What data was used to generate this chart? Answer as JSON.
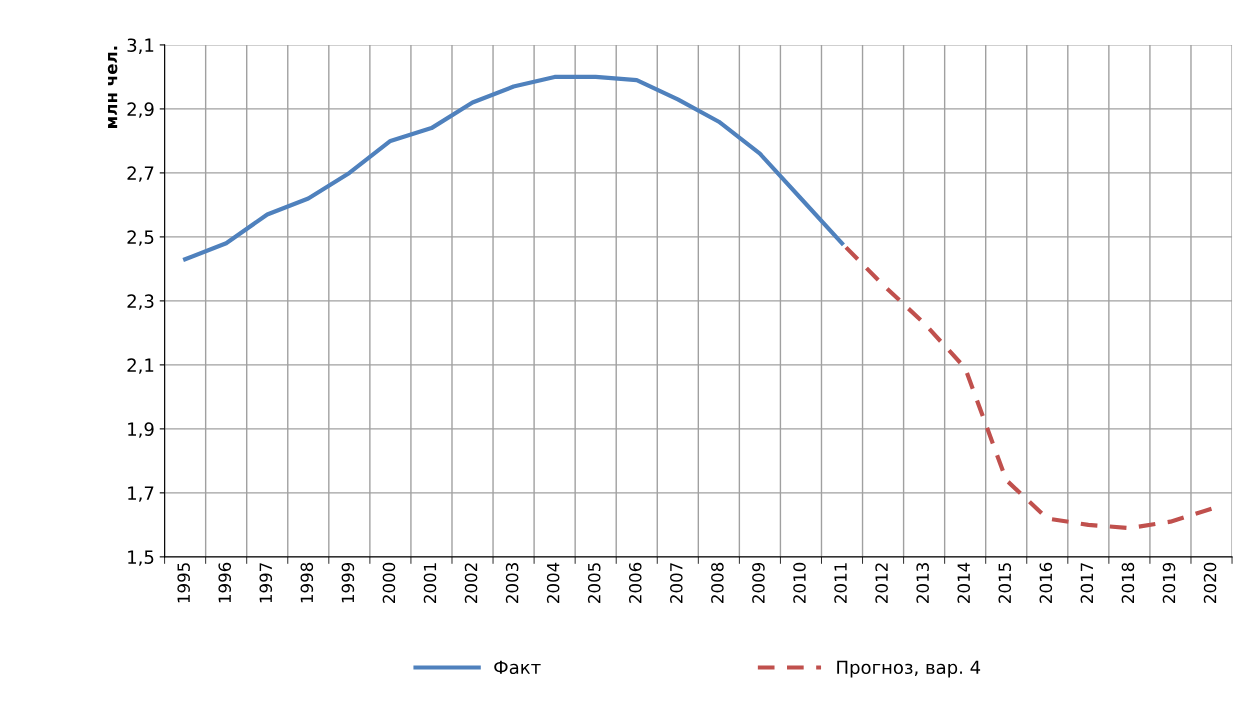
{
  "chart_data": {
    "type": "line",
    "ylabel": "млн чел.",
    "categories": [
      "1995",
      "1996",
      "1997",
      "1998",
      "1999",
      "2000",
      "2001",
      "2002",
      "2003",
      "2004",
      "2005",
      "2006",
      "2007",
      "2008",
      "2009",
      "2010",
      "2011",
      "2012",
      "2013",
      "2014",
      "2015",
      "2016",
      "2017",
      "2018",
      "2019",
      "2020"
    ],
    "series": [
      {
        "name": "Факт",
        "color": "#4f81bd",
        "line_style": "solid",
        "values": [
          2.43,
          2.48,
          2.57,
          2.62,
          2.7,
          2.8,
          2.84,
          2.92,
          2.97,
          3.0,
          3.0,
          2.99,
          2.93,
          2.86,
          2.76,
          2.62,
          2.48,
          null,
          null,
          null,
          null,
          null,
          null,
          null,
          null,
          null
        ]
      },
      {
        "name": "Прогноз, вар. 4",
        "color": "#c0504d",
        "line_style": "dashed",
        "values": [
          null,
          null,
          null,
          null,
          null,
          null,
          null,
          null,
          null,
          null,
          null,
          null,
          null,
          null,
          null,
          null,
          2.48,
          2.35,
          2.23,
          2.09,
          1.74,
          1.62,
          1.6,
          1.59,
          1.61,
          1.65
        ]
      }
    ],
    "ylim": [
      1.5,
      3.1
    ],
    "yticks": [
      {
        "value": 1.5,
        "label": "1,5"
      },
      {
        "value": 1.7,
        "label": "1,7"
      },
      {
        "value": 1.9,
        "label": "1,9"
      },
      {
        "value": 2.1,
        "label": "2,1"
      },
      {
        "value": 2.3,
        "label": "2,3"
      },
      {
        "value": 2.5,
        "label": "2,5"
      },
      {
        "value": 2.7,
        "label": "2,7"
      },
      {
        "value": 2.9,
        "label": "2,9"
      },
      {
        "value": 3.1,
        "label": "3,1"
      }
    ],
    "grid": true,
    "legend": "bottom",
    "marker": "none"
  }
}
